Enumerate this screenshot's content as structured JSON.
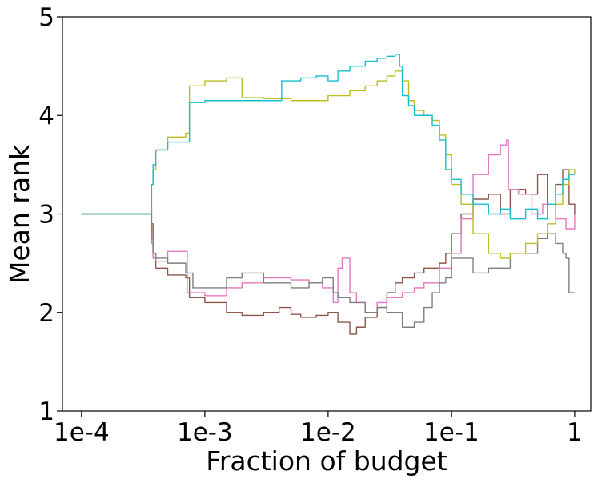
{
  "chart_data": {
    "type": "line",
    "title": "",
    "xlabel": "Fraction of budget",
    "ylabel": "Mean rank",
    "x_scale": "log",
    "xlim": [
      7e-05,
      1.35
    ],
    "ylim": [
      1,
      5
    ],
    "grid": false,
    "legend": "none",
    "x_ticks": [
      {
        "value": 0.0001,
        "label": "1e-4"
      },
      {
        "value": 0.001,
        "label": "1e-3"
      },
      {
        "value": 0.01,
        "label": "1e-2"
      },
      {
        "value": 0.1,
        "label": "1e-1"
      },
      {
        "value": 1,
        "label": "1"
      }
    ],
    "y_ticks": [
      {
        "value": 1,
        "label": "1"
      },
      {
        "value": 2,
        "label": "2"
      },
      {
        "value": 3,
        "label": "3"
      },
      {
        "value": 4,
        "label": "4"
      },
      {
        "value": 5,
        "label": "5"
      }
    ],
    "series": [
      {
        "color": "#8c564b",
        "x": [
          0.0001,
          0.00035,
          0.00037,
          0.00038,
          0.0004,
          0.0005,
          0.0007,
          0.00075,
          0.001,
          0.0015,
          0.002,
          0.003,
          0.004,
          0.005,
          0.006,
          0.008,
          0.01,
          0.012,
          0.015,
          0.017,
          0.02,
          0.025,
          0.03,
          0.035,
          0.04,
          0.05,
          0.06,
          0.07,
          0.08,
          0.09,
          0.1,
          0.12,
          0.15,
          0.2,
          0.25,
          0.3,
          0.4,
          0.5,
          0.6,
          0.7,
          0.8,
          0.9,
          1.0
        ],
        "y": [
          3.0,
          3.0,
          2.9,
          2.6,
          2.45,
          2.38,
          2.35,
          2.15,
          2.1,
          2.0,
          1.97,
          2.0,
          2.05,
          1.98,
          1.95,
          1.97,
          2.0,
          1.9,
          1.78,
          1.85,
          1.95,
          2.05,
          2.2,
          2.3,
          2.35,
          2.4,
          2.45,
          2.45,
          2.5,
          2.6,
          2.8,
          3.0,
          3.15,
          3.2,
          3.0,
          3.25,
          3.2,
          3.4,
          3.1,
          3.3,
          3.45,
          3.1,
          3.0
        ]
      },
      {
        "color": "#e377c2",
        "x": [
          0.0001,
          0.00035,
          0.00037,
          0.00038,
          0.0004,
          0.0005,
          0.0007,
          0.00072,
          0.001,
          0.0015,
          0.002,
          0.003,
          0.005,
          0.007,
          0.009,
          0.011,
          0.012,
          0.013,
          0.015,
          0.017,
          0.02,
          0.025,
          0.03,
          0.04,
          0.05,
          0.06,
          0.08,
          0.1,
          0.12,
          0.15,
          0.2,
          0.25,
          0.28,
          0.29,
          0.35,
          0.45,
          0.55,
          0.7,
          0.85,
          1.0
        ],
        "y": [
          3.0,
          3.0,
          2.7,
          2.55,
          2.52,
          2.62,
          2.62,
          2.2,
          2.17,
          2.25,
          2.3,
          2.35,
          2.33,
          2.3,
          2.25,
          2.1,
          2.45,
          2.55,
          2.2,
          2.1,
          2.0,
          2.1,
          2.15,
          2.2,
          2.25,
          2.3,
          2.45,
          2.6,
          2.95,
          3.4,
          3.6,
          3.7,
          3.75,
          3.25,
          3.2,
          3.0,
          3.1,
          2.95,
          2.85,
          3.0
        ]
      },
      {
        "color": "#7f7f7f",
        "x": [
          0.0001,
          0.00035,
          0.00037,
          0.00038,
          0.0004,
          0.0005,
          0.0007,
          0.0008,
          0.001,
          0.0015,
          0.002,
          0.003,
          0.005,
          0.007,
          0.009,
          0.011,
          0.012,
          0.015,
          0.02,
          0.025,
          0.03,
          0.04,
          0.05,
          0.06,
          0.07,
          0.08,
          0.09,
          0.1,
          0.12,
          0.15,
          0.2,
          0.3,
          0.4,
          0.5,
          0.6,
          0.7,
          0.8,
          0.85,
          0.9,
          1.0
        ],
        "y": [
          3.0,
          3.0,
          2.75,
          2.6,
          2.55,
          2.5,
          2.4,
          2.25,
          2.25,
          2.35,
          2.4,
          2.3,
          2.25,
          2.3,
          2.35,
          2.2,
          2.15,
          2.1,
          2.0,
          2.05,
          2.0,
          1.85,
          1.9,
          2.05,
          2.2,
          2.3,
          2.35,
          2.55,
          2.55,
          2.4,
          2.45,
          2.6,
          2.6,
          2.75,
          2.8,
          2.7,
          2.6,
          2.55,
          2.2,
          2.2
        ]
      },
      {
        "color": "#bcbd22",
        "x": [
          0.0001,
          0.00035,
          0.00037,
          0.00038,
          0.0004,
          0.0005,
          0.0007,
          0.00075,
          0.001,
          0.0015,
          0.0018,
          0.002,
          0.003,
          0.005,
          0.007,
          0.01,
          0.015,
          0.02,
          0.025,
          0.03,
          0.035,
          0.04,
          0.045,
          0.05,
          0.06,
          0.07,
          0.08,
          0.09,
          0.1,
          0.12,
          0.15,
          0.2,
          0.25,
          0.3,
          0.4,
          0.5,
          0.6,
          0.7,
          0.8,
          0.9,
          1.0
        ],
        "y": [
          3.0,
          3.0,
          3.3,
          3.45,
          3.65,
          3.78,
          3.82,
          4.3,
          4.35,
          4.38,
          4.38,
          4.18,
          4.17,
          4.15,
          4.15,
          4.2,
          4.25,
          4.3,
          4.35,
          4.4,
          4.45,
          4.35,
          4.15,
          4.05,
          4.0,
          3.95,
          3.8,
          3.6,
          3.3,
          3.1,
          2.8,
          2.6,
          2.55,
          2.6,
          2.7,
          2.8,
          2.9,
          3.1,
          3.3,
          3.45,
          3.4
        ]
      },
      {
        "color": "#17becf",
        "x": [
          0.0001,
          0.00035,
          0.00037,
          0.00038,
          0.0004,
          0.0005,
          0.0007,
          0.00075,
          0.001,
          0.002,
          0.004,
          0.0042,
          0.006,
          0.008,
          0.01,
          0.012,
          0.015,
          0.02,
          0.025,
          0.03,
          0.035,
          0.038,
          0.04,
          0.045,
          0.05,
          0.06,
          0.07,
          0.08,
          0.09,
          0.1,
          0.12,
          0.15,
          0.2,
          0.25,
          0.3,
          0.4,
          0.5,
          0.6,
          0.7,
          0.8,
          0.9,
          1.0
        ],
        "y": [
          3.0,
          3.0,
          3.3,
          3.5,
          3.65,
          3.73,
          3.73,
          4.13,
          4.15,
          4.15,
          4.15,
          4.35,
          4.38,
          4.4,
          4.35,
          4.45,
          4.5,
          4.55,
          4.58,
          4.6,
          4.62,
          4.5,
          4.2,
          4.1,
          4.0,
          4.0,
          3.9,
          3.75,
          3.45,
          3.35,
          3.2,
          3.1,
          3.0,
          3.05,
          2.95,
          3.05,
          2.95,
          3.1,
          3.2,
          3.35,
          3.4,
          3.4
        ]
      }
    ]
  }
}
